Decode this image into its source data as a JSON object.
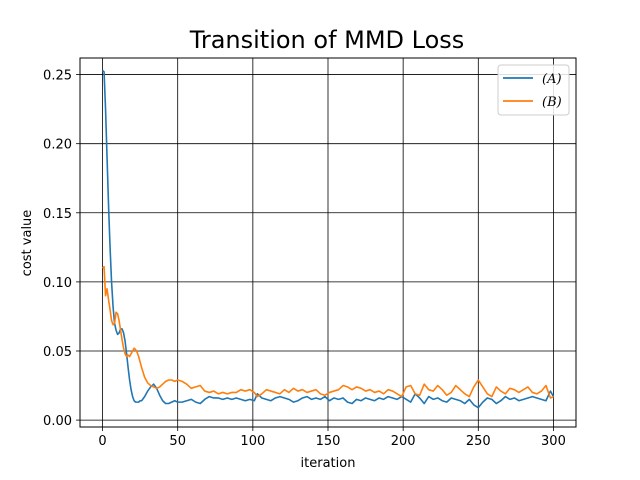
{
  "chart_data": {
    "type": "line",
    "title": "Transition of MMD Loss",
    "xlabel": "iteration",
    "ylabel": "cost value",
    "xlim": [
      -15,
      315
    ],
    "ylim": [
      -0.005,
      0.262
    ],
    "xticks": [
      0,
      50,
      100,
      150,
      200,
      250,
      300
    ],
    "xtick_labels": [
      "0",
      "50",
      "100",
      "150",
      "200",
      "250",
      "300"
    ],
    "yticks": [
      0.0,
      0.05,
      0.1,
      0.15,
      0.2,
      0.25
    ],
    "ytick_labels": [
      "0.00",
      "0.05",
      "0.10",
      "0.15",
      "0.20",
      "0.25"
    ],
    "grid": true,
    "legend_position": "top-right",
    "series": [
      {
        "name": "(A)",
        "color": "#1f77b4",
        "x": [
          0,
          1,
          2,
          3,
          4,
          5,
          6,
          7,
          8,
          9,
          10,
          11,
          12,
          13,
          14,
          15,
          16,
          17,
          18,
          19,
          20,
          21,
          22,
          23,
          24,
          25,
          26,
          28,
          30,
          32,
          34,
          36,
          38,
          40,
          42,
          44,
          46,
          48,
          50,
          53,
          56,
          59,
          62,
          65,
          68,
          71,
          74,
          77,
          80,
          83,
          86,
          89,
          92,
          95,
          98,
          101,
          103,
          106,
          109,
          112,
          115,
          118,
          121,
          124,
          127,
          130,
          133,
          136,
          139,
          142,
          145,
          148,
          151,
          154,
          157,
          160,
          163,
          166,
          169,
          172,
          175,
          178,
          181,
          184,
          187,
          190,
          193,
          196,
          199,
          202,
          205,
          208,
          211,
          214,
          217,
          220,
          223,
          226,
          229,
          232,
          235,
          238,
          241,
          244,
          247,
          250,
          253,
          256,
          259,
          262,
          265,
          268,
          271,
          274,
          277,
          280,
          283,
          286,
          289,
          292,
          295,
          298,
          300
        ],
        "y": [
          0.253,
          0.252,
          0.225,
          0.19,
          0.155,
          0.125,
          0.1,
          0.082,
          0.07,
          0.065,
          0.062,
          0.063,
          0.066,
          0.066,
          0.063,
          0.057,
          0.048,
          0.038,
          0.029,
          0.022,
          0.017,
          0.014,
          0.013,
          0.013,
          0.013,
          0.014,
          0.014,
          0.017,
          0.021,
          0.024,
          0.026,
          0.023,
          0.018,
          0.014,
          0.012,
          0.012,
          0.013,
          0.014,
          0.013,
          0.013,
          0.014,
          0.015,
          0.013,
          0.012,
          0.015,
          0.017,
          0.016,
          0.016,
          0.015,
          0.016,
          0.015,
          0.016,
          0.015,
          0.014,
          0.015,
          0.014,
          0.019,
          0.016,
          0.015,
          0.014,
          0.016,
          0.017,
          0.016,
          0.015,
          0.013,
          0.014,
          0.016,
          0.017,
          0.015,
          0.016,
          0.015,
          0.017,
          0.014,
          0.016,
          0.015,
          0.016,
          0.013,
          0.012,
          0.015,
          0.014,
          0.016,
          0.015,
          0.014,
          0.016,
          0.015,
          0.017,
          0.016,
          0.015,
          0.017,
          0.015,
          0.013,
          0.019,
          0.016,
          0.012,
          0.017,
          0.015,
          0.016,
          0.014,
          0.013,
          0.016,
          0.015,
          0.014,
          0.012,
          0.015,
          0.011,
          0.009,
          0.013,
          0.016,
          0.015,
          0.012,
          0.014,
          0.017,
          0.015,
          0.016,
          0.014,
          0.015,
          0.016,
          0.017,
          0.016,
          0.015,
          0.014,
          0.021,
          0.017
        ]
      },
      {
        "name": "(B)",
        "color": "#ff7f0e",
        "x": [
          0,
          1,
          2,
          3,
          4,
          5,
          6,
          7,
          8,
          9,
          10,
          11,
          12,
          13,
          14,
          15,
          16,
          17,
          18,
          19,
          20,
          21,
          22,
          23,
          24,
          25,
          26,
          28,
          30,
          32,
          34,
          36,
          38,
          40,
          42,
          44,
          46,
          48,
          50,
          53,
          56,
          59,
          62,
          65,
          68,
          71,
          74,
          77,
          80,
          83,
          86,
          89,
          92,
          95,
          98,
          101,
          103,
          106,
          109,
          112,
          115,
          118,
          121,
          124,
          127,
          130,
          133,
          136,
          139,
          142,
          145,
          148,
          151,
          154,
          157,
          160,
          163,
          166,
          169,
          172,
          175,
          178,
          181,
          184,
          187,
          190,
          193,
          196,
          199,
          202,
          205,
          208,
          211,
          214,
          217,
          220,
          223,
          226,
          229,
          232,
          235,
          238,
          241,
          244,
          247,
          250,
          253,
          256,
          259,
          262,
          265,
          268,
          271,
          274,
          277,
          280,
          283,
          286,
          289,
          292,
          295,
          298,
          300
        ],
        "y": [
          0.11,
          0.111,
          0.09,
          0.095,
          0.087,
          0.08,
          0.072,
          0.069,
          0.07,
          0.078,
          0.077,
          0.072,
          0.065,
          0.058,
          0.052,
          0.048,
          0.046,
          0.047,
          0.046,
          0.048,
          0.05,
          0.052,
          0.051,
          0.049,
          0.046,
          0.042,
          0.038,
          0.031,
          0.027,
          0.025,
          0.024,
          0.023,
          0.024,
          0.026,
          0.028,
          0.029,
          0.029,
          0.028,
          0.029,
          0.028,
          0.026,
          0.023,
          0.024,
          0.025,
          0.021,
          0.02,
          0.021,
          0.019,
          0.02,
          0.019,
          0.02,
          0.02,
          0.022,
          0.021,
          0.022,
          0.02,
          0.017,
          0.019,
          0.022,
          0.021,
          0.02,
          0.019,
          0.022,
          0.02,
          0.023,
          0.021,
          0.022,
          0.02,
          0.021,
          0.022,
          0.019,
          0.018,
          0.02,
          0.021,
          0.022,
          0.025,
          0.024,
          0.022,
          0.024,
          0.023,
          0.021,
          0.022,
          0.02,
          0.021,
          0.019,
          0.022,
          0.021,
          0.019,
          0.017,
          0.024,
          0.025,
          0.019,
          0.018,
          0.026,
          0.022,
          0.021,
          0.025,
          0.022,
          0.018,
          0.02,
          0.025,
          0.022,
          0.019,
          0.017,
          0.024,
          0.029,
          0.024,
          0.019,
          0.017,
          0.024,
          0.021,
          0.019,
          0.023,
          0.022,
          0.02,
          0.022,
          0.024,
          0.02,
          0.019,
          0.021,
          0.025,
          0.016,
          0.017
        ]
      }
    ]
  }
}
